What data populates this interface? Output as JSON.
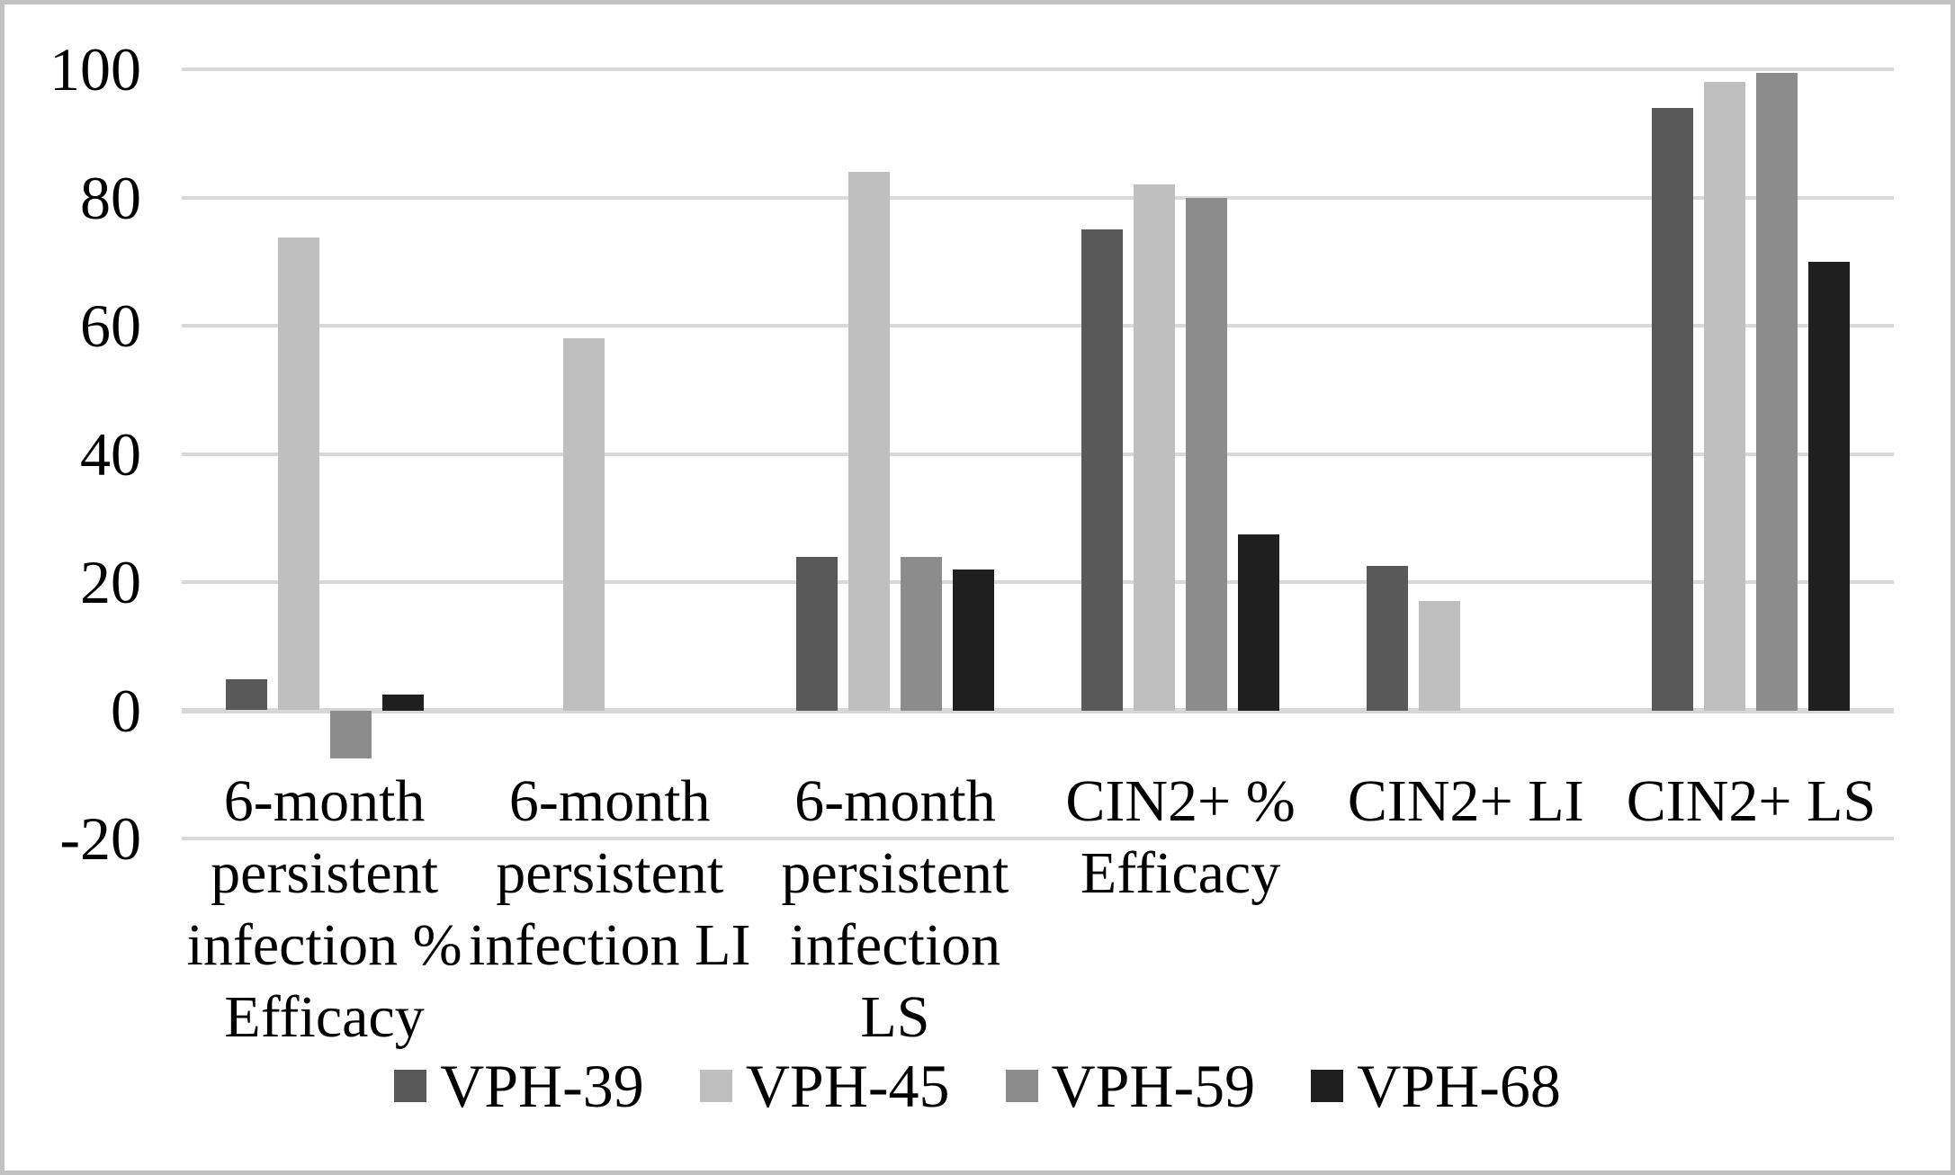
{
  "chart_data": {
    "type": "bar",
    "title": "",
    "xlabel": "",
    "ylabel": "",
    "categories": [
      "6-month persistent infection % Efficacy",
      "6-month persistent infection LI",
      "6-month persistent infection LS",
      "CIN2+ % Efficacy",
      "CIN2+ LI",
      "CIN2+ LS"
    ],
    "series": [
      {
        "name": "VPH-39",
        "color": "#595959",
        "values": [
          4.8,
          0,
          24,
          75,
          22.5,
          94
        ]
      },
      {
        "name": "VPH-45",
        "color": "#bfbfbf",
        "values": [
          73.8,
          58,
          84,
          82,
          17,
          98
        ]
      },
      {
        "name": "VPH-59",
        "color": "#8c8c8c",
        "values": [
          -7.5,
          0,
          24,
          80,
          0,
          99.5
        ]
      },
      {
        "name": "VPH-68",
        "color": "#1f1f1f",
        "values": [
          2.5,
          0,
          22,
          27.5,
          0,
          70
        ]
      }
    ],
    "ylim": [
      -20,
      100
    ],
    "ytick_step": 20,
    "y_ticks": [
      "100",
      "80",
      "60",
      "40",
      "20",
      "0",
      "-20"
    ],
    "grid": true,
    "legend_position": "bottom",
    "legend_labels": [
      "VPH-39",
      "VPH-45",
      "VPH-59",
      "VPH-68"
    ],
    "colors": {
      "gridline": "#d9d9d9",
      "frame_border": "#c2c2c2",
      "background": "#ffffff",
      "text": "#000000"
    }
  }
}
